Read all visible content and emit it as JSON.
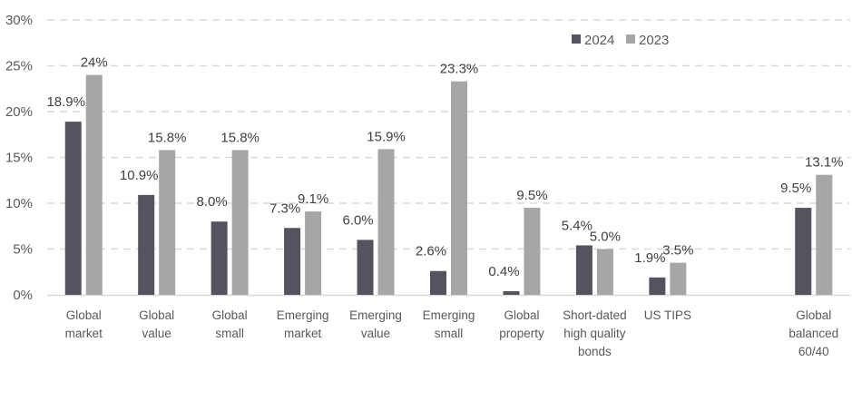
{
  "chart_data": {
    "type": "bar",
    "title": "",
    "xlabel": "",
    "ylabel": "",
    "ylim": [
      0,
      30
    ],
    "yticks": [
      0,
      5,
      10,
      15,
      20,
      25,
      30
    ],
    "ytick_labels": [
      "0%",
      "5%",
      "10%",
      "15%",
      "20%",
      "25%",
      "30%"
    ],
    "grid": true,
    "legend_position": "top-right",
    "categories": [
      [
        "Global",
        "market"
      ],
      [
        "Global",
        "value"
      ],
      [
        "Global",
        "small"
      ],
      [
        "Emerging",
        "market"
      ],
      [
        "Emerging",
        "value"
      ],
      [
        "Emerging",
        "small"
      ],
      [
        "Global",
        "property"
      ],
      [
        "Short-dated",
        "high quality",
        "bonds"
      ],
      [
        "US TIPS"
      ],
      [],
      [
        "Global",
        "balanced",
        "60/40"
      ]
    ],
    "series": [
      {
        "name": "2024",
        "color": "#54535f",
        "values": [
          18.9,
          10.9,
          8.0,
          7.3,
          6.0,
          2.6,
          0.4,
          5.4,
          1.9,
          null,
          9.5
        ],
        "labels": [
          "18.9%",
          "10.9%",
          "8.0%",
          "7.3%",
          "6.0%",
          "2.6%",
          "0.4%",
          "5.4%",
          "1.9%",
          null,
          "9.5%"
        ]
      },
      {
        "name": "2023",
        "color": "#a6a6a6",
        "values": [
          24,
          15.8,
          15.8,
          9.1,
          15.9,
          23.3,
          9.5,
          5.0,
          3.5,
          null,
          13.1
        ],
        "labels": [
          "24%",
          "15.8%",
          "15.8%",
          "9.1%",
          "15.9%",
          "23.3%",
          "9.5%",
          "5.0%",
          "3.5%",
          null,
          "13.1%"
        ]
      }
    ]
  }
}
